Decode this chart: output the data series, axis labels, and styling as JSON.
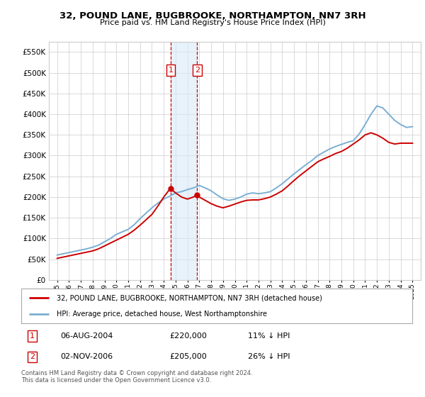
{
  "title": "32, POUND LANE, BUGBROOKE, NORTHAMPTON, NN7 3RH",
  "subtitle": "Price paid vs. HM Land Registry's House Price Index (HPI)",
  "red_label": "32, POUND LANE, BUGBROOKE, NORTHAMPTON, NN7 3RH (detached house)",
  "blue_label": "HPI: Average price, detached house, West Northamptonshire",
  "footnote": "Contains HM Land Registry data © Crown copyright and database right 2024.\nThis data is licensed under the Open Government Licence v3.0.",
  "transactions": [
    {
      "num": 1,
      "date": "06-AUG-2004",
      "price": "£220,000",
      "note": "11% ↓ HPI"
    },
    {
      "num": 2,
      "date": "02-NOV-2006",
      "price": "£205,000",
      "note": "26% ↓ HPI"
    }
  ],
  "vline_x": [
    2004.58,
    2006.83
  ],
  "vshade_x0": 2004.58,
  "vshade_x1": 2006.83,
  "ylim": [
    0,
    575000
  ],
  "yticks": [
    0,
    50000,
    100000,
    150000,
    200000,
    250000,
    300000,
    350000,
    400000,
    450000,
    500000,
    550000
  ],
  "xlim": [
    1994.3,
    2025.7
  ],
  "hpi_years": [
    1995,
    1995.5,
    1996,
    1996.5,
    1997,
    1997.5,
    1998,
    1998.5,
    1999,
    1999.5,
    2000,
    2000.5,
    2001,
    2001.5,
    2002,
    2002.5,
    2003,
    2003.5,
    2004,
    2004.5,
    2005,
    2005.5,
    2006,
    2006.5,
    2007,
    2007.5,
    2008,
    2008.5,
    2009,
    2009.5,
    2010,
    2010.5,
    2011,
    2011.5,
    2012,
    2012.5,
    2013,
    2013.5,
    2014,
    2014.5,
    2015,
    2015.5,
    2016,
    2016.5,
    2017,
    2017.5,
    2018,
    2018.5,
    2019,
    2019.5,
    2020,
    2020.5,
    2021,
    2021.5,
    2022,
    2022.5,
    2023,
    2023.5,
    2024,
    2024.5,
    2025
  ],
  "hpi_values": [
    60000,
    63000,
    66000,
    69000,
    72000,
    75000,
    79000,
    84000,
    92000,
    100000,
    110000,
    116000,
    122000,
    133000,
    148000,
    161000,
    174000,
    185000,
    195000,
    202000,
    210000,
    213000,
    218000,
    222000,
    228000,
    222000,
    215000,
    205000,
    196000,
    192000,
    195000,
    200000,
    207000,
    210000,
    208000,
    210000,
    213000,
    222000,
    232000,
    244000,
    256000,
    267000,
    278000,
    288000,
    300000,
    308000,
    316000,
    322000,
    327000,
    332000,
    336000,
    352000,
    375000,
    400000,
    420000,
    415000,
    400000,
    385000,
    375000,
    368000,
    370000
  ],
  "red_years": [
    1995,
    1995.5,
    1996,
    1996.5,
    1997,
    1997.5,
    1998,
    1998.5,
    1999,
    1999.5,
    2000,
    2000.5,
    2001,
    2001.5,
    2002,
    2002.5,
    2003,
    2003.5,
    2004,
    2004.4,
    2004.58,
    2005,
    2005.5,
    2006,
    2006.5,
    2006.83,
    2007,
    2007.5,
    2008,
    2008.5,
    2009,
    2009.5,
    2010,
    2010.5,
    2011,
    2011.5,
    2012,
    2012.5,
    2013,
    2013.5,
    2014,
    2014.5,
    2015,
    2015.5,
    2016,
    2016.5,
    2017,
    2017.5,
    2018,
    2018.5,
    2019,
    2019.5,
    2020,
    2020.5,
    2021,
    2021.5,
    2022,
    2022.5,
    2023,
    2023.5,
    2024,
    2024.5,
    2025
  ],
  "red_values": [
    52000,
    55000,
    58000,
    61000,
    64000,
    67000,
    70000,
    75000,
    82000,
    89000,
    96000,
    103000,
    110000,
    120000,
    132000,
    145000,
    158000,
    178000,
    200000,
    215000,
    220000,
    210000,
    200000,
    195000,
    200000,
    205000,
    200000,
    192000,
    184000,
    178000,
    174000,
    178000,
    183000,
    188000,
    192000,
    193000,
    193000,
    196000,
    200000,
    207000,
    215000,
    227000,
    240000,
    252000,
    263000,
    274000,
    285000,
    292000,
    298000,
    305000,
    310000,
    318000,
    328000,
    338000,
    350000,
    355000,
    350000,
    342000,
    332000,
    328000,
    330000,
    330000,
    330000
  ],
  "marker1_x": 2004.58,
  "marker1_y": 220000,
  "marker2_x": 2006.83,
  "marker2_y": 205000,
  "bg_color": "#ffffff",
  "grid_color": "#cccccc",
  "red_color": "#cc0000",
  "blue_color": "#7aafd4",
  "vline_color": "#cc0000",
  "shade_color": "#d8eaf7",
  "box_color": "#cc0000",
  "legend_border_color": "#aaaaaa",
  "footnote_color": "#555555"
}
